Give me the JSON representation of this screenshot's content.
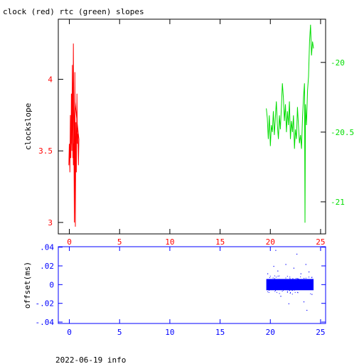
{
  "title": "clock (red) rtc (green) slopes",
  "footer": "2022-06-19 info",
  "colors": {
    "clock": "#ff0000",
    "rtc": "#00dd00",
    "offset": "#0000ff",
    "frame": "#000000"
  },
  "chart_data": [
    {
      "type": "line",
      "title": "clock (red) rtc (green) slopes",
      "ylabel": "clockslope",
      "xlim": [
        -1.1,
        25.5
      ],
      "ylim": [
        2.92,
        4.42
      ],
      "y2lim": [
        -21.23,
        -19.69
      ],
      "x_ticks": [
        0,
        5,
        10,
        15,
        20,
        25
      ],
      "y_ticks": [
        3,
        3.5,
        4
      ],
      "y2_ticks": [
        -21,
        -20.5,
        -20
      ],
      "grid": false,
      "series": [
        {
          "name": "clock",
          "axis": "left",
          "x": [
            -0.05,
            0.0,
            0.05,
            0.1,
            0.15,
            0.2,
            0.25,
            0.3,
            0.35,
            0.4,
            0.45,
            0.5,
            0.55,
            0.6,
            0.65,
            0.7,
            0.75,
            0.8,
            0.85,
            0.9,
            0.95,
            0.55,
            0.4,
            0.3,
            0.2,
            0.1,
            0.0
          ],
          "y": [
            3.4,
            3.55,
            3.35,
            3.75,
            3.45,
            3.9,
            3.5,
            4.1,
            3.45,
            4.25,
            3.6,
            3.0,
            4.05,
            2.97,
            3.7,
            3.35,
            3.9,
            3.55,
            3.62,
            3.4,
            3.58,
            3.85,
            3.4,
            4.0,
            3.6,
            3.45,
            3.52
          ]
        },
        {
          "name": "rtc",
          "axis": "right",
          "x": [
            19.6,
            19.7,
            19.8,
            19.9,
            20.0,
            20.1,
            20.2,
            20.3,
            20.4,
            20.5,
            20.6,
            20.7,
            20.8,
            20.9,
            21.0,
            21.1,
            21.2,
            21.3,
            21.4,
            21.5,
            21.6,
            21.7,
            21.8,
            21.9,
            22.0,
            22.1,
            22.2,
            22.3,
            22.4,
            22.5,
            22.6,
            22.7,
            22.8,
            22.9,
            23.0,
            23.1,
            23.2,
            23.3,
            23.4,
            23.45,
            23.5,
            23.6,
            23.7,
            23.8,
            23.9,
            24.0,
            24.1,
            24.2,
            24.3
          ],
          "y": [
            -20.33,
            -20.4,
            -20.55,
            -20.38,
            -20.6,
            -20.45,
            -20.5,
            -20.35,
            -20.52,
            -20.4,
            -20.28,
            -20.45,
            -20.55,
            -20.38,
            -20.48,
            -20.32,
            -20.15,
            -20.25,
            -20.42,
            -20.3,
            -20.5,
            -20.35,
            -20.45,
            -20.28,
            -20.55,
            -20.42,
            -20.5,
            -20.38,
            -20.62,
            -20.48,
            -20.55,
            -20.32,
            -20.45,
            -20.58,
            -20.52,
            -20.62,
            -20.4,
            -20.25,
            -20.15,
            -21.15,
            -20.3,
            -20.45,
            -20.2,
            -20.1,
            -19.85,
            -19.73,
            -19.95,
            -19.85,
            -19.9
          ]
        }
      ]
    },
    {
      "type": "scatter",
      "ylabel": "offset(ms)",
      "xlim": [
        -1.1,
        25.5
      ],
      "ylim": [
        -0.0415,
        0.0405
      ],
      "x_ticks": [
        0,
        5,
        10,
        15,
        20,
        25
      ],
      "y_ticks": [
        -0.04,
        -0.02,
        0,
        0.02,
        0.04
      ],
      "grid": false,
      "series": [
        {
          "name": "offset",
          "x_range": [
            19.6,
            24.3
          ],
          "band": [
            -0.006,
            0.006
          ],
          "outliers": [
            {
              "x": 19.7,
              "y": 0.012
            },
            {
              "x": 20.3,
              "y": 0.02
            },
            {
              "x": 20.5,
              "y": 0.037
            },
            {
              "x": 20.7,
              "y": 0.015
            },
            {
              "x": 21.0,
              "y": -0.012
            },
            {
              "x": 21.5,
              "y": 0.022
            },
            {
              "x": 21.8,
              "y": -0.02
            },
            {
              "x": 22.3,
              "y": 0.018
            },
            {
              "x": 22.6,
              "y": 0.033
            },
            {
              "x": 23.0,
              "y": 0.012
            },
            {
              "x": 23.3,
              "y": -0.018
            },
            {
              "x": 23.5,
              "y": 0.022
            },
            {
              "x": 23.6,
              "y": -0.027
            },
            {
              "x": 23.8,
              "y": 0.014
            },
            {
              "x": 24.1,
              "y": -0.01
            }
          ]
        }
      ]
    }
  ]
}
